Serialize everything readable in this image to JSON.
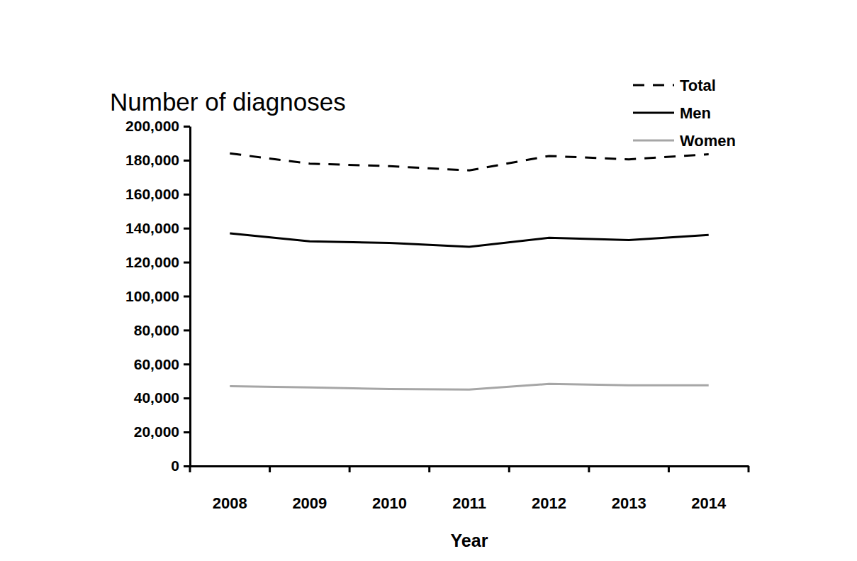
{
  "chart_data": {
    "type": "line",
    "title": "Number of diagnoses",
    "xlabel": "Year",
    "categories": [
      "2008",
      "2009",
      "2010",
      "2011",
      "2012",
      "2013",
      "2014"
    ],
    "series": [
      {
        "name": "Total",
        "color": "#000000",
        "line_style": "dashed",
        "values": [
          184000,
          178000,
          176500,
          174000,
          182500,
          180500,
          183500
        ]
      },
      {
        "name": "Men",
        "color": "#000000",
        "line_style": "solid",
        "values": [
          137000,
          132300,
          131300,
          129000,
          134300,
          133000,
          136000
        ]
      },
      {
        "name": "Women",
        "color": "#a6a6a6",
        "line_style": "solid",
        "values": [
          47000,
          46200,
          45300,
          45000,
          48300,
          47500,
          47500
        ]
      }
    ],
    "ylim": [
      0,
      200000
    ],
    "yticks": [
      0,
      {
        "value": 20000,
        "label": "20,000"
      },
      {
        "value": 40000,
        "label": "40,000"
      },
      {
        "value": 60000,
        "label": "60,000"
      },
      {
        "value": 80000,
        "label": "80,000"
      },
      {
        "value": 100000,
        "label": "100,000"
      },
      {
        "value": 120000,
        "label": "120,000"
      },
      {
        "value": 140000,
        "label": "140,000"
      },
      {
        "value": 160000,
        "label": "160,000"
      },
      {
        "value": 180000,
        "label": "180,000"
      },
      {
        "value": 200000,
        "label": "200,000"
      }
    ],
    "grid": false,
    "legend": "top-right"
  }
}
